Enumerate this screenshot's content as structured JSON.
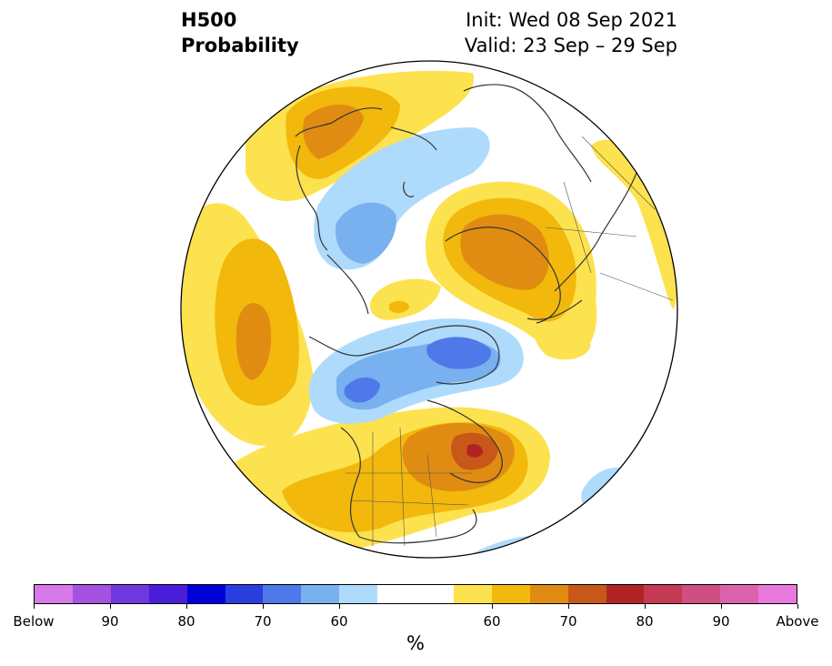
{
  "header": {
    "variable": "H500",
    "product": "Probability",
    "init": "Init: Wed 08 Sep 2021",
    "valid": "Valid: 23 Sep – 29 Sep"
  },
  "colors": {
    "below": [
      "#d77ae8",
      "#a552e0",
      "#7038e0",
      "#4a1ed8",
      "#0000d8",
      "#2a3ee0",
      "#4f78e8",
      "#78b0f0",
      "#aedbfb"
    ],
    "neutral": "#ffffff",
    "above": [
      "#fde24f",
      "#f2b80c",
      "#e08c12",
      "#c8581a",
      "#b22424",
      "#c43a52",
      "#d04e80",
      "#dc62ac",
      "#e978dc"
    ],
    "land_outline": "#333333"
  },
  "colorbar": {
    "unit": "%",
    "labels": [
      "Below",
      "90",
      "80",
      "70",
      "60",
      "60",
      "70",
      "80",
      "90",
      "Above"
    ]
  }
}
